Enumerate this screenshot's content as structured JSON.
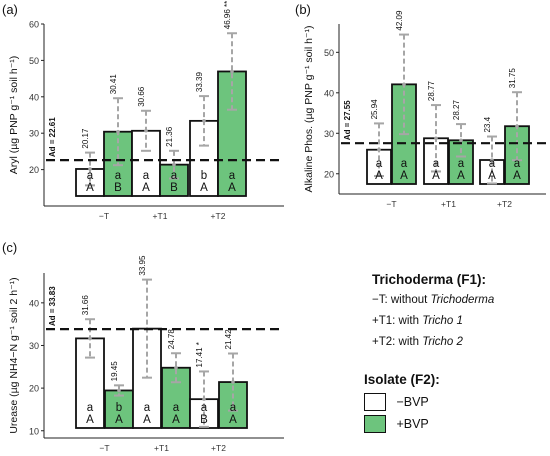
{
  "chart_data": [
    {
      "id": "a",
      "type": "bar",
      "panel_label": "(a)",
      "ylabel": "Aryl (µg PNP g⁻¹ soil h⁻¹)",
      "categories": [
        "−T",
        "+T1",
        "+T2"
      ],
      "ylim": [
        10,
        60
      ],
      "yticks": [
        20,
        30,
        40,
        50,
        60
      ],
      "reference": {
        "value": 22.61,
        "label": "Ad = 22.61"
      },
      "series": [
        {
          "name": "−BVP",
          "values": [
            20.17,
            30.66,
            33.39
          ],
          "err": [
            4.5,
            5.5,
            6.8
          ],
          "value_labels": [
            "20.17",
            "30.66",
            "33.39"
          ],
          "lower_letters": [
            "a",
            "a",
            "b"
          ],
          "upper_letters": [
            "A",
            "A",
            "A"
          ]
        },
        {
          "name": "+BVP",
          "values": [
            30.41,
            21.36,
            46.96
          ],
          "err": [
            9.2,
            3.8,
            10.5
          ],
          "value_labels": [
            "30.41",
            "21.36",
            "46.96 **"
          ],
          "lower_letters": [
            "a",
            "a",
            "a"
          ],
          "upper_letters": [
            "B",
            "B",
            "A"
          ]
        }
      ]
    },
    {
      "id": "b",
      "type": "bar",
      "panel_label": "(b)",
      "ylabel": "Alkaline Phos. (µg PNP g⁻¹ soil h⁻¹)",
      "categories": [
        "−T",
        "+T1",
        "+T2"
      ],
      "ylim": [
        15,
        57
      ],
      "yticks": [
        20,
        30,
        40,
        50
      ],
      "reference": {
        "value": 27.55,
        "label": "Ad = 27.55"
      },
      "series": [
        {
          "name": "−BVP",
          "values": [
            25.94,
            28.77,
            23.4
          ],
          "err": [
            6.5,
            8.2,
            5.8
          ],
          "value_labels": [
            "25.94",
            "28.77",
            "23.4"
          ],
          "lower_letters": [
            "a",
            "a",
            "a"
          ],
          "upper_letters": [
            "A",
            "A",
            "A"
          ]
        },
        {
          "name": "+BVP",
          "values": [
            42.09,
            28.27,
            31.75
          ],
          "err": [
            12.3,
            4.0,
            8.4
          ],
          "value_labels": [
            "42.09",
            "28.27",
            "31.75"
          ],
          "lower_letters": [
            "a",
            "a",
            "a"
          ],
          "upper_letters": [
            "A",
            "A",
            "A"
          ]
        }
      ]
    },
    {
      "id": "c",
      "type": "bar",
      "panel_label": "(c)",
      "ylabel": "Urease (µg NH4−N g⁻¹ soil 2 h⁻¹)",
      "categories": [
        "−T",
        "+T1",
        "+T2"
      ],
      "ylim": [
        8.3,
        47
      ],
      "yticks": [
        10,
        20,
        30,
        40
      ],
      "reference": {
        "value": 33.83,
        "label": "Ad = 33.83"
      },
      "series": [
        {
          "name": "−BVP",
          "values": [
            31.66,
            33.95,
            17.41
          ],
          "err": [
            4.5,
            11.5,
            6.5
          ],
          "value_labels": [
            "31.66",
            "33.95",
            "17.41 *"
          ],
          "lower_letters": [
            "a",
            "a",
            "a"
          ],
          "upper_letters": [
            "A",
            "A",
            "B"
          ]
        },
        {
          "name": "+BVP",
          "values": [
            19.45,
            24.78,
            21.42
          ],
          "err": [
            1.2,
            3.4,
            6.7
          ],
          "value_labels": [
            "19.45",
            "24.78",
            "21.42"
          ],
          "lower_letters": [
            "b",
            "a",
            "a"
          ],
          "upper_letters": [
            "A",
            "A",
            "A"
          ]
        }
      ]
    }
  ],
  "legend": {
    "factor1_title": "Trichoderma (F1):",
    "factor1_items": [
      {
        "code": "−T:",
        "text": "without",
        "italic": "Trichoderma"
      },
      {
        "code": "+T1:",
        "text": "with",
        "italic": "Tricho 1"
      },
      {
        "code": "+T2:",
        "text": "with",
        "italic": "Tricho 2"
      }
    ],
    "factor2_title": "Isolate (F2):",
    "factor2_items": [
      {
        "label": "−BVP",
        "color": "#ffffff"
      },
      {
        "label": "+BVP",
        "color": "#6dc47d"
      }
    ]
  },
  "colors": {
    "bar_minus": "#ffffff",
    "bar_plus": "#6dc47d",
    "outline": "#111111",
    "error_bar": "#a6a6a6"
  }
}
